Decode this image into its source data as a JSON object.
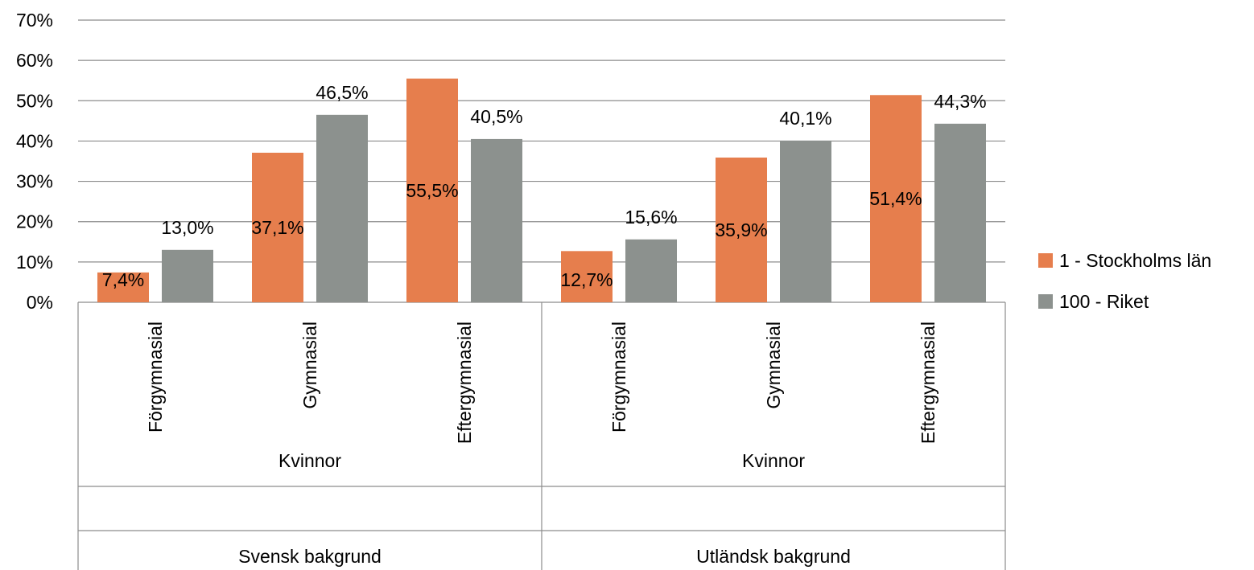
{
  "chart_data": {
    "type": "bar",
    "title": "",
    "xlabel": "",
    "ylabel": "",
    "ylim": [
      0,
      70
    ],
    "y_ticks": [
      "0%",
      "10%",
      "20%",
      "30%",
      "40%",
      "50%",
      "60%",
      "70%"
    ],
    "grid": true,
    "legend_position": "right",
    "categories": [
      "Förgymnasial",
      "Gymnasial",
      "Eftergymnasial",
      "Förgymnasial",
      "Gymnasial",
      "Eftergymnasial"
    ],
    "category_groups": [
      {
        "background": "Svensk bakgrund",
        "gender": "Kvinnor"
      },
      {
        "background": "Utländsk bakgrund",
        "gender": "Kvinnor"
      }
    ],
    "series": [
      {
        "name": "1 - Stockholms län",
        "color": "#E67E4D",
        "values": [
          7.4,
          37.1,
          55.5,
          12.7,
          35.9,
          51.4
        ],
        "labels": [
          "7,4%",
          "37,1%",
          "55,5%",
          "12,7%",
          "35,9%",
          "51,4%"
        ]
      },
      {
        "name": "100 - Riket",
        "color": "#8C918E",
        "values": [
          13.0,
          46.5,
          40.5,
          15.6,
          40.1,
          44.3
        ],
        "labels": [
          "13,0%",
          "46,5%",
          "40,5%",
          "15,6%",
          "40,1%",
          "44,3%"
        ]
      }
    ]
  }
}
